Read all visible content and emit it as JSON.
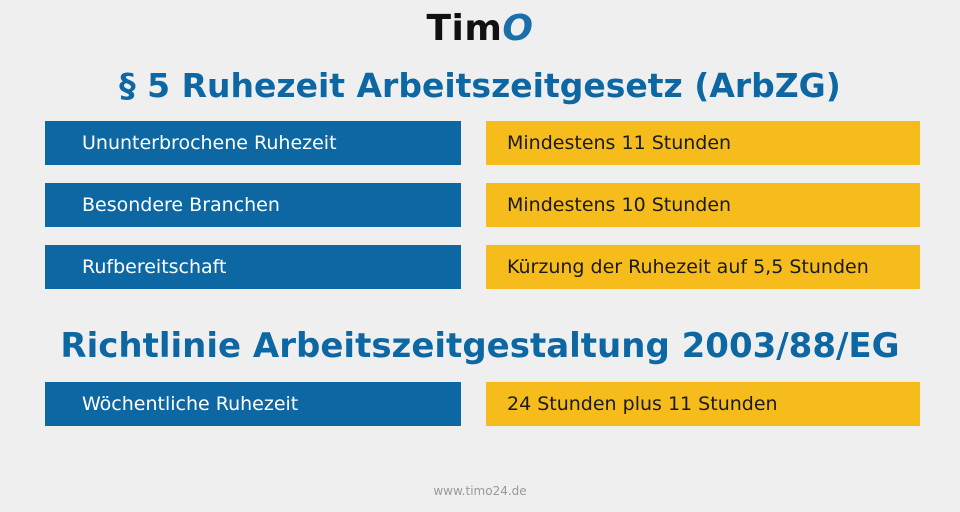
{
  "logo": {
    "text_main": "Tim",
    "text_accent": "O"
  },
  "section1": {
    "title": "§ 5 Ruhezeit Arbeitszeitgesetz (ArbZG)",
    "rows": [
      {
        "label": "Ununterbrochene Ruhezeit",
        "value": "Mindestens 11 Stunden"
      },
      {
        "label": "Besondere Branchen",
        "value": "Mindestens 10 Stunden"
      },
      {
        "label": "Rufbereitschaft",
        "value": "Kürzung der Ruhezeit auf 5,5 Stunden"
      }
    ]
  },
  "section2": {
    "title": "Richtlinie Arbeitszeitgestaltung 2003/88/EG",
    "rows": [
      {
        "label": "Wöchentliche Ruhezeit",
        "value": "24 Stunden plus 11 Stunden"
      }
    ]
  },
  "footer": {
    "url": "www.timo24.de"
  },
  "colors": {
    "blue": "#0d67a3",
    "yellow": "#f5bc1c",
    "background": "#efefef"
  }
}
